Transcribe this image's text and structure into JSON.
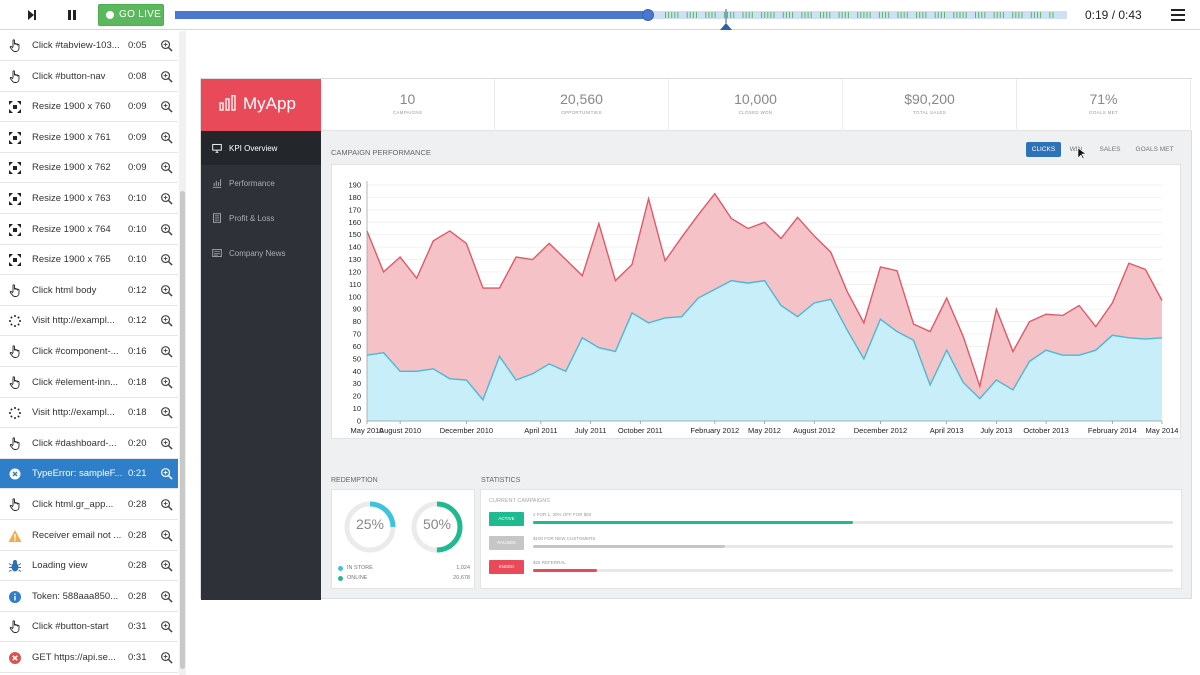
{
  "player": {
    "go_live_label": "GO LIVE",
    "time_current": "0:19",
    "time_total": "0:43",
    "time_separator": " / ",
    "progress_fraction": 0.53,
    "colors": {
      "fill": "#4a78d0",
      "track": "#cde0f6",
      "tick": "#5cb85c",
      "go_live": "#5cb85c"
    }
  },
  "events": [
    {
      "icon": "pointer-icon",
      "text": "Click #tabview-103...",
      "time": "0:05"
    },
    {
      "icon": "pointer-icon",
      "text": "Click #button-nav",
      "time": "0:08"
    },
    {
      "icon": "resize-icon",
      "text": "Resize 1900 x 760",
      "time": "0:09"
    },
    {
      "icon": "resize-icon",
      "text": "Resize 1900 x 761",
      "time": "0:09"
    },
    {
      "icon": "resize-icon",
      "text": "Resize 1900 x 762",
      "time": "0:09"
    },
    {
      "icon": "resize-icon",
      "text": "Resize 1900 x 763",
      "time": "0:10"
    },
    {
      "icon": "resize-icon",
      "text": "Resize 1900 x 764",
      "time": "0:10"
    },
    {
      "icon": "resize-icon",
      "text": "Resize 1900 x 765",
      "time": "0:10"
    },
    {
      "icon": "pointer-icon",
      "text": "Click html body",
      "time": "0:12"
    },
    {
      "icon": "loading-icon",
      "text": "Visit http://exampl...",
      "time": "0:12"
    },
    {
      "icon": "pointer-icon",
      "text": "Click #component-...",
      "time": "0:16"
    },
    {
      "icon": "pointer-icon",
      "text": "Click #element-inn...",
      "time": "0:18"
    },
    {
      "icon": "loading-icon",
      "text": "Visit http://exampl...",
      "time": "0:18"
    },
    {
      "icon": "pointer-icon",
      "text": "Click #dashboard-...",
      "time": "0:20"
    },
    {
      "icon": "error-icon",
      "text": "TypeError: sampleF...",
      "time": "0:21",
      "active": true
    },
    {
      "icon": "pointer-icon",
      "text": "Click html.gr_app...",
      "time": "0:28"
    },
    {
      "icon": "warning-icon",
      "text": "Receiver email not ...",
      "time": "0:28"
    },
    {
      "icon": "bug-icon",
      "text": "Loading view",
      "time": "0:28"
    },
    {
      "icon": "info-icon",
      "text": "Token: 588aaa850...",
      "time": "0:28"
    },
    {
      "icon": "pointer-icon",
      "text": "Click #button-start",
      "time": "0:31"
    },
    {
      "icon": "error-icon",
      "text": "GET https://api.se...",
      "time": "0:31"
    }
  ],
  "app": {
    "brand": "MyApp",
    "brand_color": "#e84a5a",
    "nav": [
      {
        "label": "KPI Overview",
        "icon": "monitor-icon",
        "active": true
      },
      {
        "label": "Performance",
        "icon": "chart-icon"
      },
      {
        "label": "Profit & Loss",
        "icon": "ledger-icon"
      },
      {
        "label": "Company News",
        "icon": "news-icon"
      }
    ],
    "kpis": [
      {
        "value": "10",
        "label": "CAMPAIGNS"
      },
      {
        "value": "20,560",
        "label": "OPPORTUNITIES"
      },
      {
        "value": "10,000",
        "label": "CLOSED WON"
      },
      {
        "value": "$90,200",
        "label": "TOTAL SALES"
      },
      {
        "value": "71%",
        "label": "GOALS MET"
      }
    ],
    "perf_title": "CAMPAIGN PERFORMANCE",
    "chart_tabs": [
      {
        "label": "CLICKS",
        "active": true
      },
      {
        "label": "WIN"
      },
      {
        "label": "SALES"
      },
      {
        "label": "GOALS MET"
      }
    ],
    "redemption_title": "REDEMPTION",
    "statistics_title": "STATISTICS",
    "donuts": [
      {
        "label": "25%",
        "value": 0.25,
        "color": "#3ec3dc"
      },
      {
        "label": "50%",
        "value": 0.5,
        "color": "#1fba8f"
      }
    ],
    "redemption_legend": [
      {
        "label": "IN STORE",
        "value": "1,024",
        "color": "#3ec3dc"
      },
      {
        "label": "ONLINE",
        "value": "20,678",
        "color": "#1fba8f"
      }
    ],
    "campaigns_title": "CURRENT CAMPAIGNS",
    "campaigns": [
      {
        "status": "ACTIVE",
        "name": "2 FOR 1, 30% OFF FOR $50",
        "progress": 0.5,
        "color": "#1fba8f"
      },
      {
        "status": "PAUSED",
        "name": "$100 FOR NEW CUSTOMERS",
        "progress": 0.3,
        "color": "#c6c6c6"
      },
      {
        "status": "ENDED",
        "name": "$25 REFERRAL",
        "progress": 0.1,
        "color": "#e84a5a"
      }
    ]
  },
  "chart_data": {
    "type": "area",
    "x_ticks": [
      "May 2010",
      "August 2010",
      "December 2010",
      "April 2011",
      "July 2011",
      "October 2011",
      "February 2012",
      "May 2012",
      "August 2012",
      "December 2012",
      "April 2013",
      "July 2013",
      "October 2013",
      "February 2014",
      "May 2014"
    ],
    "ylim": [
      0,
      190
    ],
    "y_ticks": [
      0,
      10,
      20,
      30,
      40,
      50,
      60,
      70,
      80,
      90,
      100,
      110,
      120,
      130,
      140,
      150,
      160,
      170,
      180,
      190
    ],
    "grid": true,
    "series": [
      {
        "color": "#f4c2c7",
        "line": "#e05a68",
        "values": [
          153,
          120,
          132,
          115,
          145,
          153,
          143,
          107,
          107,
          132,
          130,
          143,
          130,
          117,
          159,
          113,
          126,
          179,
          129,
          148,
          166,
          183,
          163,
          155,
          160,
          147,
          164,
          149,
          136,
          104,
          79,
          124,
          121,
          78,
          72,
          99,
          68,
          28,
          90,
          56,
          80,
          86,
          85,
          93,
          76,
          95,
          127,
          122,
          97
        ]
      },
      {
        "color": "#c8eefa",
        "line": "#4cb8d8",
        "values": [
          53,
          55,
          40,
          40,
          42,
          34,
          33,
          17,
          52,
          33,
          38,
          46,
          40,
          67,
          59,
          56,
          87,
          79,
          83,
          84,
          99,
          106,
          113,
          111,
          113,
          93,
          84,
          95,
          98,
          73,
          50,
          82,
          72,
          65,
          29,
          57,
          31,
          18,
          33,
          25,
          48,
          57,
          53,
          53,
          57,
          69,
          67,
          66,
          67
        ]
      }
    ]
  }
}
